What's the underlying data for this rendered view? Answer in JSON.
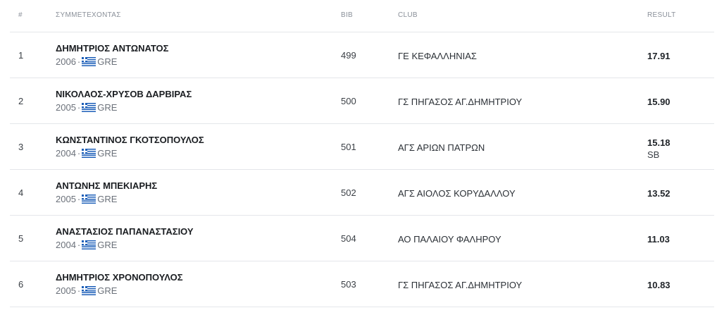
{
  "headers": {
    "rank": "#",
    "athlete": "ΣΥΜΜΕΤΕΧΟΝΤΑΣ",
    "bib": "BIB",
    "club": "CLUB",
    "result": "RESULT"
  },
  "rows": [
    {
      "rank": "1",
      "name": "ΔΗΜΗΤΡΙΟΣ ΑΝΤΩΝΑΤΟΣ",
      "year": "2006",
      "sep": "·",
      "country": "GRE",
      "bib": "499",
      "club": "ΓΕ ΚΕΦΑΛΛΗΝΙΑΣ",
      "result": "17.91",
      "note": ""
    },
    {
      "rank": "2",
      "name": "ΝΙΚΟΛΑΟΣ-ΧΡΥΣΟΒ ΔΑΡΒΙΡΑΣ",
      "year": "2005",
      "sep": "·",
      "country": "GRE",
      "bib": "500",
      "club": "ΓΣ ΠΗΓΑΣΟΣ ΑΓ.ΔΗΜΗΤΡΙΟΥ",
      "result": "15.90",
      "note": ""
    },
    {
      "rank": "3",
      "name": "ΚΩΝΣΤΑΝΤΙΝΟΣ ΓΚΟΤΣΟΠΟΥΛΟΣ",
      "year": "2004",
      "sep": "·",
      "country": "GRE",
      "bib": "501",
      "club": "ΑΓΣ ΑΡΙΩΝ ΠΑΤΡΩΝ",
      "result": "15.18",
      "note": "SB"
    },
    {
      "rank": "4",
      "name": "ΑΝΤΩΝΗΣ ΜΠΕΚΙΑΡΗΣ",
      "year": "2005",
      "sep": "·",
      "country": "GRE",
      "bib": "502",
      "club": "ΑΓΣ ΑΙΟΛΟΣ ΚΟΡΥΔΑΛΛΟΥ",
      "result": "13.52",
      "note": ""
    },
    {
      "rank": "5",
      "name": "ΑΝΑΣΤΑΣΙΟΣ ΠΑΠΑΝΑΣΤΑΣΙΟΥ",
      "year": "2004",
      "sep": "·",
      "country": "GRE",
      "bib": "504",
      "club": "ΑΟ ΠΑΛΑΙΟΥ ΦΑΛΗΡΟΥ",
      "result": "11.03",
      "note": ""
    },
    {
      "rank": "6",
      "name": "ΔΗΜΗΤΡΙΟΣ ΧΡΟΝΟΠΟΥΛΟΣ",
      "year": "2005",
      "sep": "·",
      "country": "GRE",
      "bib": "503",
      "club": "ΓΣ ΠΗΓΑΣΟΣ ΑΓ.ΔΗΜΗΤΡΙΟΥ",
      "result": "10.83",
      "note": ""
    }
  ],
  "icons": {
    "flag": "greece-flag-icon"
  },
  "colors": {
    "header_text": "#8a9099",
    "border": "#e4e6ea",
    "flag_blue": "#1d5fb8"
  }
}
